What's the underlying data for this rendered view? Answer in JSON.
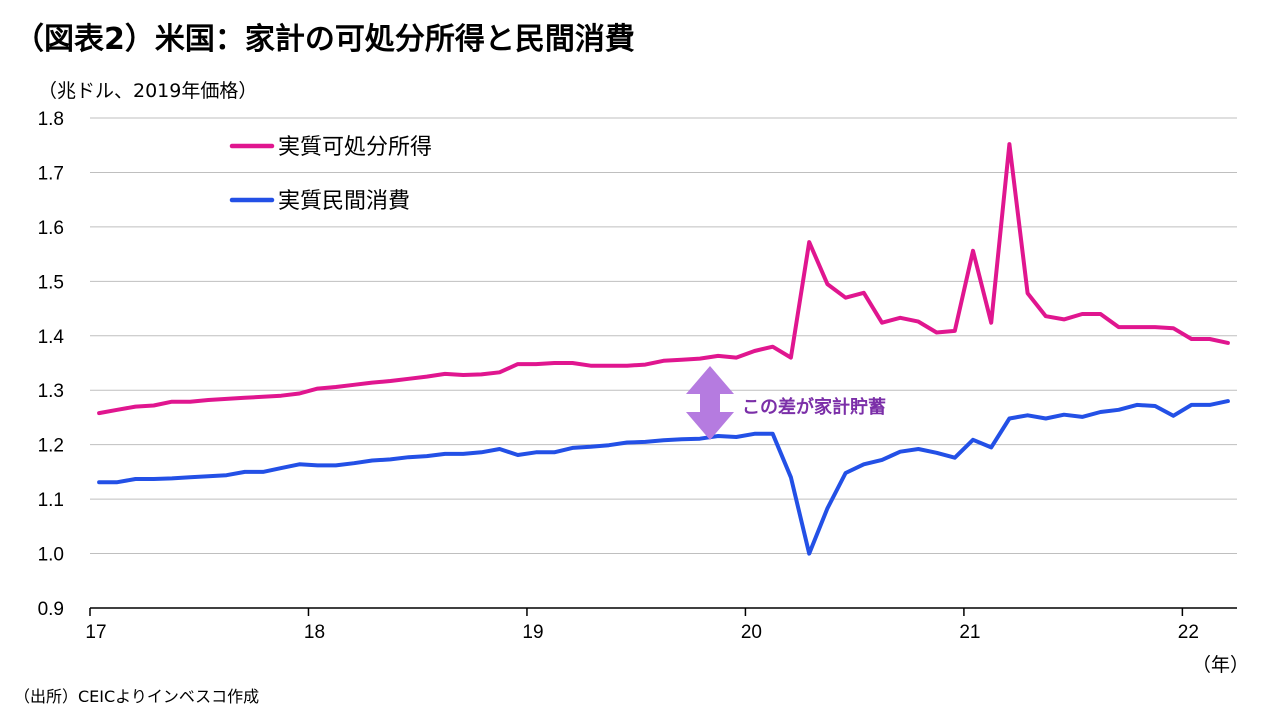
{
  "title": "（図表2）米国：家計の可処分所得と民間消費",
  "unit_label": "（兆ドル、2019年価格）",
  "x_unit_label": "（年）",
  "source": "（出所）CEICよりインベスコ作成",
  "colors": {
    "disposable_income": "#E0168F",
    "consumption": "#2350E6",
    "annotation": "#7B2FA8",
    "arrow": "#B57BE0",
    "grid": "#BFBFBF"
  },
  "chart_data": {
    "type": "line",
    "title": "（図表2）米国：家計の可処分所得と民間消費",
    "ylabel": "（兆ドル、2019年価格）",
    "xlabel": "（年）",
    "ylim": [
      0.9,
      1.8
    ],
    "yticks": [
      "0.9",
      "1.0",
      "1.1",
      "1.2",
      "1.3",
      "1.4",
      "1.5",
      "1.6",
      "1.7",
      "1.8"
    ],
    "xlim": [
      2017,
      2022.25
    ],
    "xticks": [
      "17",
      "18",
      "19",
      "20",
      "21",
      "22"
    ],
    "grid": true,
    "legend": "top-left",
    "annotation": "この差が家計貯蓄",
    "series": [
      {
        "name": "実質可処分所得",
        "color": "#E0168F",
        "values": [
          1.258,
          1.264,
          1.27,
          1.272,
          1.279,
          1.279,
          1.282,
          1.284,
          1.286,
          1.288,
          1.29,
          1.294,
          1.303,
          1.306,
          1.31,
          1.314,
          1.317,
          1.321,
          1.325,
          1.33,
          1.328,
          1.329,
          1.333,
          1.348,
          1.348,
          1.35,
          1.35,
          1.345,
          1.345,
          1.345,
          1.347,
          1.354,
          1.356,
          1.358,
          1.363,
          1.36,
          1.372,
          1.38,
          1.36,
          1.572,
          1.495,
          1.47,
          1.479,
          1.424,
          1.433,
          1.426,
          1.406,
          1.409,
          1.556,
          1.424,
          1.752,
          1.478,
          1.436,
          1.43,
          1.44,
          1.44,
          1.416,
          1.416,
          1.416,
          1.414,
          1.394,
          1.394,
          1.387
        ]
      },
      {
        "name": "実質民間消費",
        "color": "#2350E6",
        "values": [
          1.131,
          1.131,
          1.137,
          1.137,
          1.138,
          1.14,
          1.142,
          1.144,
          1.15,
          1.15,
          1.157,
          1.164,
          1.162,
          1.162,
          1.166,
          1.171,
          1.173,
          1.177,
          1.179,
          1.183,
          1.183,
          1.186,
          1.192,
          1.181,
          1.186,
          1.186,
          1.194,
          1.196,
          1.199,
          1.204,
          1.205,
          1.208,
          1.21,
          1.211,
          1.216,
          1.214,
          1.22,
          1.22,
          1.14,
          1.0,
          1.083,
          1.148,
          1.164,
          1.172,
          1.187,
          1.192,
          1.185,
          1.176,
          1.209,
          1.195,
          1.248,
          1.254,
          1.248,
          1.255,
          1.251,
          1.26,
          1.264,
          1.273,
          1.271,
          1.253,
          1.273,
          1.273,
          1.28
        ]
      }
    ]
  }
}
